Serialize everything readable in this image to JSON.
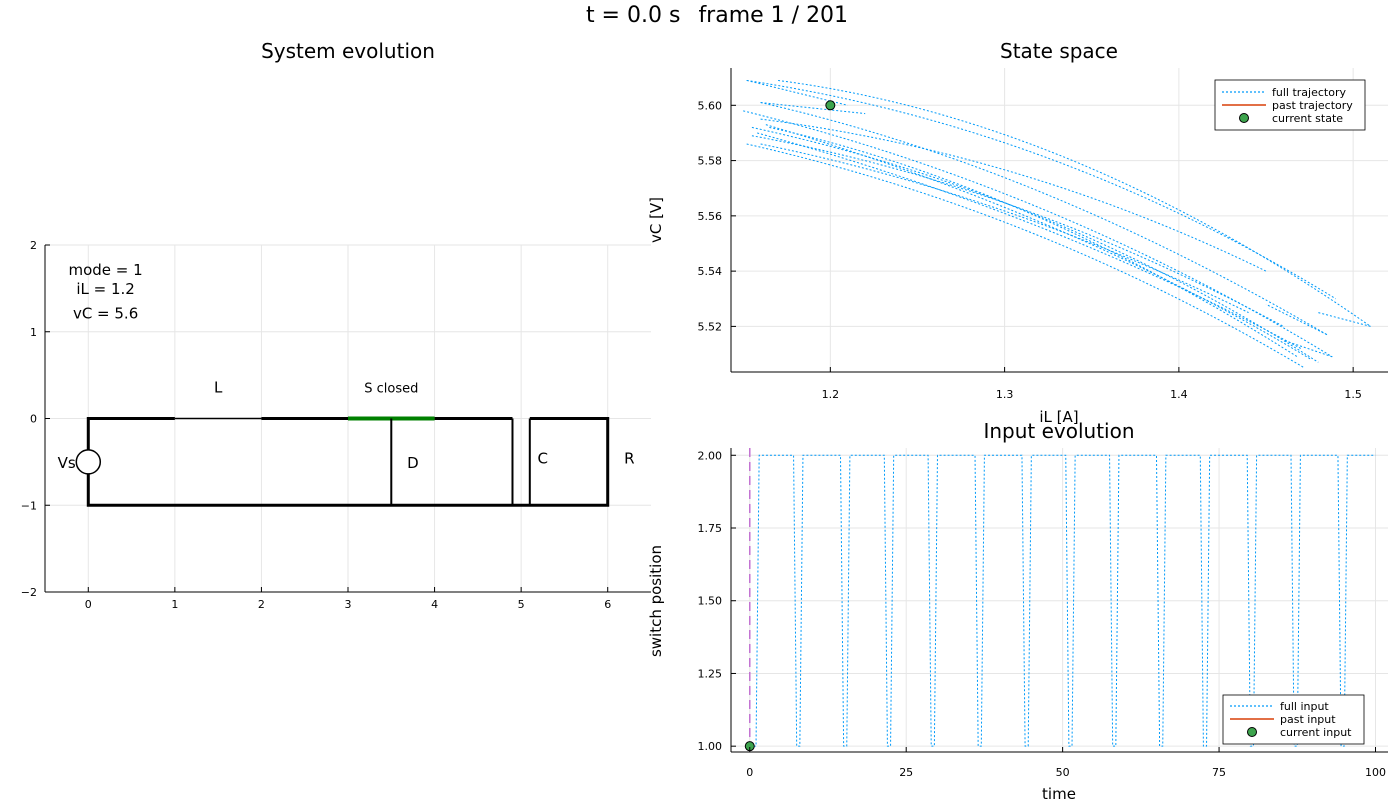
{
  "header": {
    "time_label": "t = 0.0 s",
    "frame_label": "frame 1 / 201"
  },
  "chart_data": [
    {
      "id": "system",
      "type": "diagram",
      "title": "System evolution",
      "xlim": [
        -0.5,
        6.5
      ],
      "ylim": [
        -2,
        2
      ],
      "xticks": [
        0,
        1,
        2,
        3,
        4,
        5,
        6
      ],
      "yticks": [
        -2,
        -1,
        0,
        1,
        2
      ],
      "ytick_labels": [
        "−2",
        "−1",
        "0",
        "1",
        "2"
      ],
      "info": [
        "mode = 1",
        "iL = 1.2",
        "vC = 5.6"
      ],
      "labels": {
        "inductor": "L",
        "switch": "S closed",
        "source": "Vs",
        "diode": "D",
        "capacitor": "C",
        "resistor": "R"
      },
      "colors": {
        "wire": "#000000",
        "switch_closed": "#008000"
      }
    },
    {
      "id": "state-space",
      "type": "line",
      "title": "State space",
      "xlabel": "iL [A]",
      "ylabel": "vC [V]",
      "xlim": [
        1.143,
        1.52
      ],
      "ylim": [
        5.5035,
        5.6135
      ],
      "xticks": [
        1.2,
        1.3,
        1.4,
        1.5
      ],
      "xtick_labels": [
        "1.2",
        "1.3",
        "1.4",
        "1.5"
      ],
      "yticks": [
        5.52,
        5.54,
        5.56,
        5.58,
        5.6
      ],
      "ytick_labels": [
        "5.52",
        "5.54",
        "5.56",
        "5.58",
        "5.60"
      ],
      "legend_position": "top-right",
      "series": [
        {
          "name": "full trajectory",
          "style": "dotted",
          "color": "#009af9",
          "arcs": [
            [
              [
                1.17,
                5.609
              ],
              [
                1.34,
                5.595
              ],
              [
                1.51,
                5.52
              ]
            ],
            [
              [
                1.152,
                5.609
              ],
              [
                1.33,
                5.592
              ],
              [
                1.49,
                5.53
              ]
            ],
            [
              [
                1.15,
                5.598
              ],
              [
                1.33,
                5.57
              ],
              [
                1.488,
                5.509
              ]
            ],
            [
              [
                1.155,
                5.592
              ],
              [
                1.33,
                5.568
              ],
              [
                1.48,
                5.507
              ]
            ],
            [
              [
                1.152,
                5.586
              ],
              [
                1.32,
                5.562
              ],
              [
                1.472,
                5.505
              ]
            ],
            [
              [
                1.16,
                5.601
              ],
              [
                1.32,
                5.578
              ],
              [
                1.485,
                5.517
              ]
            ],
            [
              [
                1.155,
                5.589
              ],
              [
                1.31,
                5.571
              ],
              [
                1.46,
                5.52
              ]
            ],
            [
              [
                1.16,
                5.595
              ],
              [
                1.31,
                5.583
              ],
              [
                1.45,
                5.54
              ]
            ],
            [
              [
                1.165,
                5.592
              ],
              [
                1.31,
                5.572
              ],
              [
                1.468,
                5.509
              ]
            ],
            [
              [
                1.158,
                5.59
              ],
              [
                1.33,
                5.56
              ],
              [
                1.47,
                5.512
              ]
            ],
            [
              [
                1.16,
                5.586
              ],
              [
                1.3,
                5.568
              ],
              [
                1.44,
                5.525
              ]
            ],
            [
              [
                1.163,
                5.593
              ],
              [
                1.34,
                5.56
              ],
              [
                1.476,
                5.508
              ]
            ]
          ],
          "connectors": [
            [
              [
                1.152,
                5.609
              ],
              [
                1.21,
                5.6
              ]
            ],
            [
              [
                1.16,
                5.601
              ],
              [
                1.22,
                5.597
              ]
            ],
            [
              [
                1.488,
                5.509
              ],
              [
                1.46,
                5.515
              ]
            ],
            [
              [
                1.51,
                5.52
              ],
              [
                1.48,
                5.525
              ]
            ],
            [
              [
                1.485,
                5.517
              ],
              [
                1.45,
                5.528
              ]
            ]
          ]
        },
        {
          "name": "past trajectory",
          "style": "solid",
          "color": "#e26f46",
          "points": []
        },
        {
          "name": "current state",
          "style": "marker",
          "color": "#3da44d",
          "points": [
            [
              1.2,
              5.6
            ]
          ]
        }
      ]
    },
    {
      "id": "input",
      "type": "line",
      "title": "Input evolution",
      "xlabel": "time",
      "ylabel": "switch position",
      "xlim": [
        -3,
        102
      ],
      "ylim": [
        0.98,
        2.025
      ],
      "xticks": [
        0,
        25,
        50,
        75,
        100
      ],
      "xtick_labels": [
        "0",
        "25",
        "50",
        "75",
        "100"
      ],
      "yticks": [
        1.0,
        1.25,
        1.5,
        1.75,
        2.0
      ],
      "ytick_labels": [
        "1.00",
        "1.25",
        "1.50",
        "1.75",
        "2.00"
      ],
      "legend_position": "bottom-right",
      "current_time": 0,
      "series": [
        {
          "name": "full input",
          "style": "dotted",
          "color": "#009af9",
          "points": [
            [
              0,
              1
            ],
            [
              1,
              1
            ],
            [
              1.5,
              2
            ],
            [
              7,
              2
            ],
            [
              7.5,
              1
            ],
            [
              8,
              1
            ],
            [
              8.5,
              2
            ],
            [
              14.5,
              2
            ],
            [
              15,
              1
            ],
            [
              15.5,
              1
            ],
            [
              16,
              2
            ],
            [
              21.5,
              2
            ],
            [
              22,
              1
            ],
            [
              22.5,
              1
            ],
            [
              23,
              2
            ],
            [
              28.5,
              2
            ],
            [
              29,
              1
            ],
            [
              29.5,
              1
            ],
            [
              30,
              2
            ],
            [
              36,
              2
            ],
            [
              36.5,
              1
            ],
            [
              37,
              1
            ],
            [
              37.5,
              2
            ],
            [
              43.5,
              2
            ],
            [
              44,
              1
            ],
            [
              44.5,
              1
            ],
            [
              45,
              2
            ],
            [
              50.5,
              2
            ],
            [
              51,
              1
            ],
            [
              51.5,
              1
            ],
            [
              52,
              2
            ],
            [
              57.5,
              2
            ],
            [
              58,
              1
            ],
            [
              58.5,
              1
            ],
            [
              59,
              2
            ],
            [
              65,
              2
            ],
            [
              65.5,
              1
            ],
            [
              66,
              1
            ],
            [
              66.5,
              2
            ],
            [
              72,
              2
            ],
            [
              72.5,
              1
            ],
            [
              73,
              1
            ],
            [
              73.5,
              2
            ],
            [
              79.5,
              2
            ],
            [
              80,
              1
            ],
            [
              80.5,
              1
            ],
            [
              81,
              2
            ],
            [
              86.5,
              2
            ],
            [
              87,
              1
            ],
            [
              87.5,
              1
            ],
            [
              88,
              2
            ],
            [
              94,
              2
            ],
            [
              94.5,
              1
            ],
            [
              95,
              1
            ],
            [
              95.5,
              2
            ],
            [
              100,
              2
            ]
          ]
        },
        {
          "name": "past input",
          "style": "solid",
          "color": "#e26f46",
          "points": []
        },
        {
          "name": "current input",
          "style": "marker",
          "color": "#3da44d",
          "points": [
            [
              0,
              1
            ]
          ]
        }
      ],
      "cursor_color": "#c271d2"
    }
  ]
}
